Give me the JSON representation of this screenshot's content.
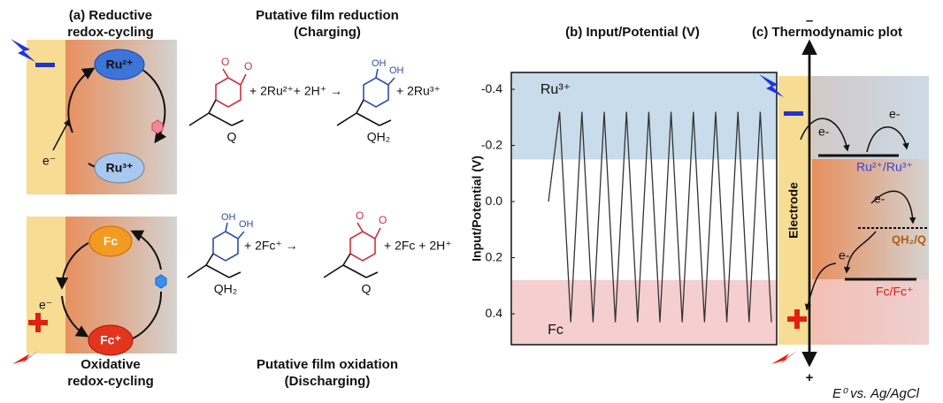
{
  "panel_a": {
    "title": [
      "(a) Reductive",
      "redox-cycling"
    ],
    "reduction_title": [
      "Putative film reduction",
      "(Charging)"
    ],
    "oxidation_caption": [
      "Oxidative",
      "redox-cycling"
    ],
    "oxidation_title": [
      "Putative film oxidation",
      "(Discharging)"
    ],
    "top_cycle": {
      "upper": "Ru²⁺",
      "lower": "Ru³⁺",
      "electron": "e⁻"
    },
    "bottom_cycle": {
      "upper": "Fc",
      "lower": "Fc⁺",
      "electron": "e⁻"
    },
    "reduction": {
      "reactant": "Q",
      "reactant_atoms": [
        "O",
        "O"
      ],
      "reagents": "+ 2Ru²⁺+ 2H⁺ →",
      "product": "QH₂",
      "product_atoms": [
        "OH",
        "OH"
      ],
      "byproduct": "+ 2Ru³⁺"
    },
    "oxidation": {
      "reactant": "QH₂",
      "reactant_atoms": [
        "OH",
        "OH"
      ],
      "reagents": "+ 2Fc⁺ →",
      "product": "Q",
      "product_atoms": [
        "O",
        "O"
      ],
      "byproduct": "+ 2Fc + 2H⁺"
    }
  },
  "chart_data": {
    "type": "line",
    "title": "(b) Input/Potential (V)",
    "y_label": "Input/Potential (V)",
    "values": [
      0.0,
      -0.32,
      0.43,
      -0.32,
      0.43,
      -0.32,
      0.43,
      -0.32,
      0.43,
      -0.32,
      0.43,
      -0.32,
      0.43,
      -0.32,
      0.43,
      -0.32,
      0.43,
      -0.32,
      0.43,
      -0.32,
      0.43
    ],
    "color": "#333333",
    "ylim": [
      -0.46,
      0.51
    ],
    "y_inverted": true,
    "yticks": [
      -0.4,
      -0.2,
      {
        "value": 0,
        "label": "0.0"
      },
      0.2,
      0.4
    ],
    "bands": [
      {
        "label": "Ru³⁺",
        "range": [
          -0.46,
          -0.15
        ],
        "color": "#c9dcec"
      },
      {
        "label": "Fc",
        "range": [
          0.28,
          0.51
        ],
        "color": "#f5cfd0"
      }
    ]
  },
  "panel_c": {
    "title": "(c) Thermodynamic plot",
    "top_sign": "–",
    "bottom_sign": "+",
    "axis_label": "E⁰ vs. Ag/AgCl",
    "electrode": "Electrode",
    "electrons": [
      "e-",
      "e-",
      "e-",
      "e-"
    ],
    "levels": [
      "Ru²⁺/Ru³⁺",
      "QH₂/Q",
      "Fc/Fc⁺"
    ]
  }
}
